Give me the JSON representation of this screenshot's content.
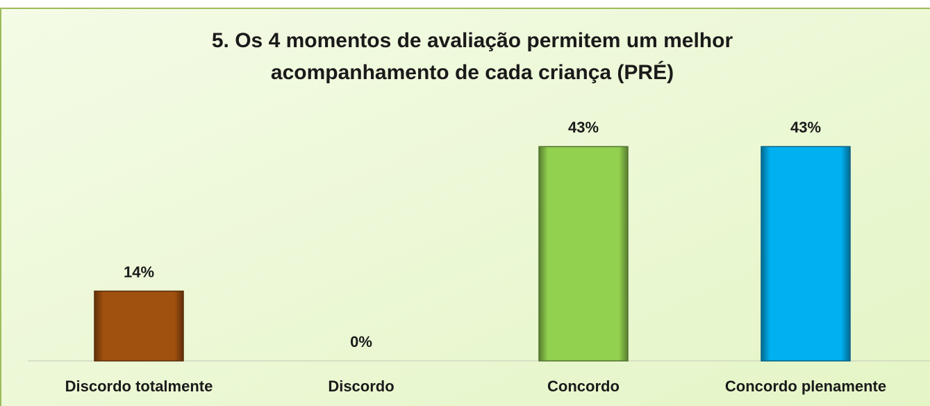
{
  "chart_data": {
    "type": "bar",
    "title": [
      "5. Os 4 momentos de avaliação permitem um melhor",
      "acompanhamento de cada criança (PRÉ)"
    ],
    "categories": [
      "Discordo totalmente",
      "Discordo",
      "Concordo",
      "Concordo plenamente"
    ],
    "values": [
      14,
      0,
      43,
      43
    ],
    "value_labels": [
      "14%",
      "0%",
      "43%",
      "43%"
    ],
    "colors": [
      "#a0500f",
      "#92d050",
      "#92d050",
      "#00b0f0"
    ],
    "ylim": [
      0,
      50
    ]
  }
}
